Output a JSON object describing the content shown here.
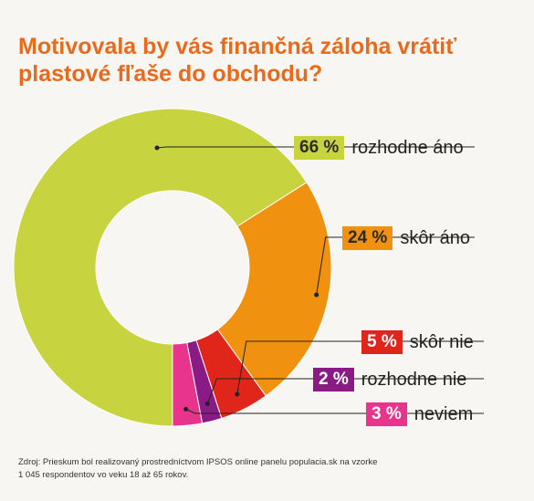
{
  "title_line1": "Motivovala by vás finančná záloha vrátiť",
  "title_line2": "plastové fľaše do obchodu?",
  "chart_data": {
    "type": "pie",
    "title": "Motivovala by vás finančná záloha vrátiť plastové fľaše do obchodu?",
    "slices": [
      {
        "label": "rozhodne áno",
        "value": 66,
        "display": "66 %",
        "color": "#c7d440",
        "text_color": "#2b2b2b"
      },
      {
        "label": "skôr áno",
        "value": 24,
        "display": "24 %",
        "color": "#f0910f",
        "text_color": "#2b2b2b"
      },
      {
        "label": "skôr nie",
        "value": 5,
        "display": "5 %",
        "color": "#e0251b",
        "text_color": "#ffffff"
      },
      {
        "label": "rozhodne nie",
        "value": 2,
        "display": "2 %",
        "color": "#8a1a86",
        "text_color": "#ffffff"
      },
      {
        "label": "neviem",
        "value": 3,
        "display": "3 %",
        "color": "#e8348d",
        "text_color": "#ffffff"
      }
    ]
  },
  "source_line1": "Zdroj: Prieskum bol realizovaný prostredníctvom IPSOS online panelu populacia.sk na vzorke",
  "source_line2": "1 045 respondentov vo veku 18 až 65 rokov."
}
